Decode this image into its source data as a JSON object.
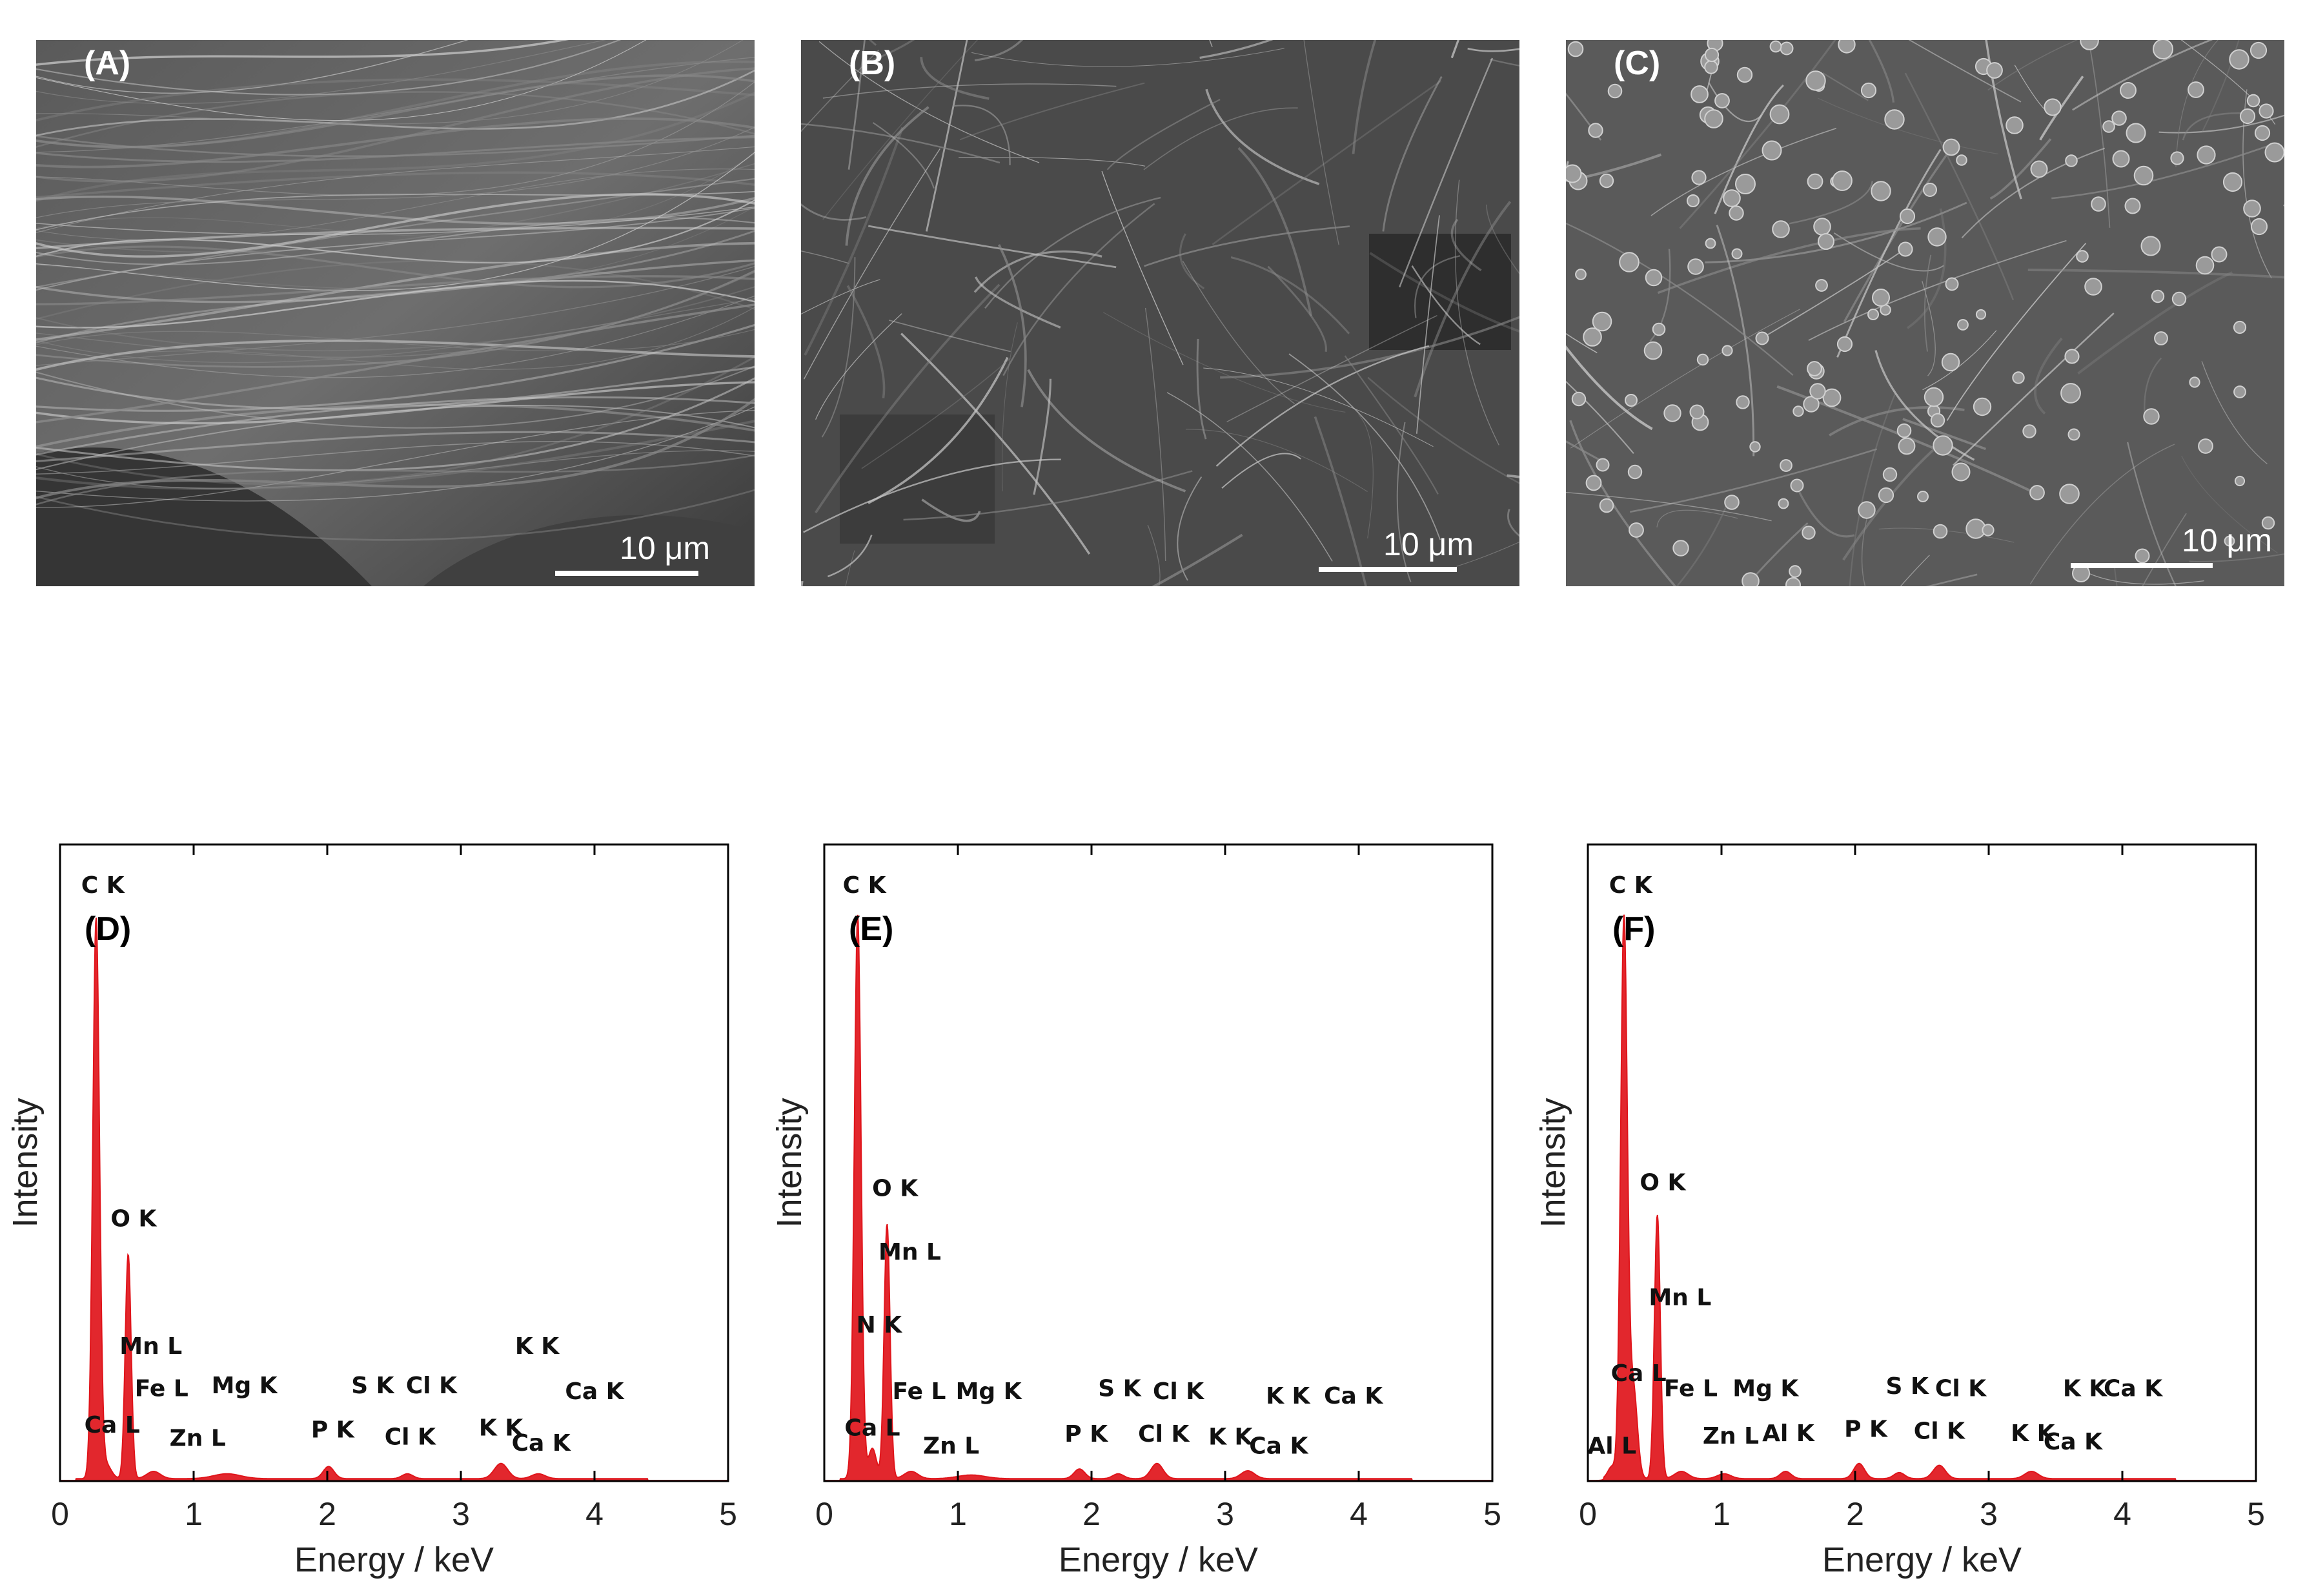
{
  "figure": {
    "sem_panels": [
      {
        "label": "(A)",
        "scale_bar": "10 μm",
        "texture": "smooth-folded-sheets"
      },
      {
        "label": "(B)",
        "scale_bar": "10 μm",
        "texture": "fibrous-network"
      },
      {
        "label": "(C)",
        "scale_bar": "10 μm",
        "texture": "textured-with-particles"
      }
    ]
  },
  "colors": {
    "spectrum": "#e0151b",
    "axis": "#000000",
    "background": "#ffffff"
  },
  "chart_data": [
    {
      "type": "area",
      "panel_label": "(D)",
      "xlabel": "Energy / keV",
      "ylabel": "Intensity",
      "xlim": [
        0,
        5
      ],
      "ylim": [
        0,
        1.05
      ],
      "x_ticks": [
        "0",
        "1",
        "2",
        "3",
        "4",
        "5"
      ],
      "grid": false,
      "peaks": [
        {
          "x": 0.27,
          "y": 0.92,
          "width": 0.025
        },
        {
          "x": 0.51,
          "y": 0.37,
          "width": 0.022
        },
        {
          "x": 0.34,
          "y": 0.025,
          "width": 0.04
        },
        {
          "x": 0.7,
          "y": 0.012,
          "width": 0.05
        },
        {
          "x": 1.25,
          "y": 0.008,
          "width": 0.1
        },
        {
          "x": 2.01,
          "y": 0.02,
          "width": 0.04
        },
        {
          "x": 2.6,
          "y": 0.008,
          "width": 0.04
        },
        {
          "x": 3.3,
          "y": 0.025,
          "width": 0.05
        },
        {
          "x": 3.58,
          "y": 0.008,
          "width": 0.05
        }
      ],
      "annotations": [
        {
          "text": "C  K",
          "x": 0.32,
          "y": 0.97
        },
        {
          "text": "O  K",
          "x": 0.55,
          "y": 0.42
        },
        {
          "text": "Mn L",
          "x": 0.68,
          "y": 0.21
        },
        {
          "text": "Fe L",
          "x": 0.76,
          "y": 0.14
        },
        {
          "text": "Mg K",
          "x": 1.38,
          "y": 0.145
        },
        {
          "text": "Ca L",
          "x": 0.39,
          "y": 0.08
        },
        {
          "text": "Zn L",
          "x": 1.03,
          "y": 0.058
        },
        {
          "text": "S  K",
          "x": 2.34,
          "y": 0.145
        },
        {
          "text": "Cl K",
          "x": 2.78,
          "y": 0.145
        },
        {
          "text": "P  K",
          "x": 2.04,
          "y": 0.072
        },
        {
          "text": "Cl K",
          "x": 2.62,
          "y": 0.06
        },
        {
          "text": "K  K",
          "x": 3.57,
          "y": 0.21
        },
        {
          "text": "K  K",
          "x": 3.3,
          "y": 0.075
        },
        {
          "text": "Ca K",
          "x": 3.6,
          "y": 0.05
        },
        {
          "text": "Ca K",
          "x": 4.0,
          "y": 0.135
        }
      ]
    },
    {
      "type": "area",
      "panel_label": "(E)",
      "xlabel": "Energy / keV",
      "ylabel": "Intensity",
      "xlim": [
        0,
        5
      ],
      "ylim": [
        0,
        1.05
      ],
      "x_ticks": [
        "0",
        "1",
        "2",
        "3",
        "4",
        "5"
      ],
      "grid": false,
      "peaks": [
        {
          "x": 0.25,
          "y": 0.93,
          "width": 0.025
        },
        {
          "x": 0.47,
          "y": 0.42,
          "width": 0.022
        },
        {
          "x": 0.36,
          "y": 0.05,
          "width": 0.03
        },
        {
          "x": 0.65,
          "y": 0.012,
          "width": 0.05
        },
        {
          "x": 1.1,
          "y": 0.006,
          "width": 0.1
        },
        {
          "x": 1.91,
          "y": 0.016,
          "width": 0.04
        },
        {
          "x": 2.2,
          "y": 0.008,
          "width": 0.04
        },
        {
          "x": 2.49,
          "y": 0.025,
          "width": 0.045
        },
        {
          "x": 3.17,
          "y": 0.013,
          "width": 0.05
        }
      ],
      "annotations": [
        {
          "text": "C  K",
          "x": 0.3,
          "y": 0.97
        },
        {
          "text": "O  K",
          "x": 0.53,
          "y": 0.47
        },
        {
          "text": "Mn L",
          "x": 0.64,
          "y": 0.365
        },
        {
          "text": "N  K",
          "x": 0.41,
          "y": 0.245
        },
        {
          "text": "Fe L",
          "x": 0.71,
          "y": 0.135
        },
        {
          "text": "Mg K",
          "x": 1.23,
          "y": 0.135
        },
        {
          "text": "Ca L",
          "x": 0.36,
          "y": 0.075
        },
        {
          "text": "Zn L",
          "x": 0.95,
          "y": 0.045
        },
        {
          "text": "S  K",
          "x": 2.21,
          "y": 0.14
        },
        {
          "text": "Cl K",
          "x": 2.65,
          "y": 0.135
        },
        {
          "text": "P  K",
          "x": 1.96,
          "y": 0.065
        },
        {
          "text": "Cl K",
          "x": 2.54,
          "y": 0.065
        },
        {
          "text": "K  K",
          "x": 3.47,
          "y": 0.128
        },
        {
          "text": "Ca K",
          "x": 3.96,
          "y": 0.128
        },
        {
          "text": "K  K",
          "x": 3.04,
          "y": 0.06
        },
        {
          "text": "Ca K",
          "x": 3.4,
          "y": 0.045
        }
      ]
    },
    {
      "type": "area",
      "panel_label": "(F)",
      "xlabel": "Energy / keV",
      "ylabel": "Intensity",
      "xlim": [
        0,
        5
      ],
      "ylim": [
        0,
        1.05
      ],
      "x_ticks": [
        "0",
        "1",
        "2",
        "3",
        "4",
        "5"
      ],
      "grid": false,
      "peaks": [
        {
          "x": 0.27,
          "y": 0.92,
          "width": 0.025
        },
        {
          "x": 0.52,
          "y": 0.435,
          "width": 0.022
        },
        {
          "x": 0.34,
          "y": 0.15,
          "width": 0.03
        },
        {
          "x": 0.18,
          "y": 0.02,
          "width": 0.03
        },
        {
          "x": 0.7,
          "y": 0.012,
          "width": 0.05
        },
        {
          "x": 1.02,
          "y": 0.008,
          "width": 0.05
        },
        {
          "x": 1.48,
          "y": 0.012,
          "width": 0.04
        },
        {
          "x": 2.03,
          "y": 0.025,
          "width": 0.04
        },
        {
          "x": 2.33,
          "y": 0.01,
          "width": 0.04
        },
        {
          "x": 2.63,
          "y": 0.022,
          "width": 0.045
        },
        {
          "x": 3.32,
          "y": 0.012,
          "width": 0.05
        }
      ],
      "annotations": [
        {
          "text": "C  K",
          "x": 0.32,
          "y": 0.97
        },
        {
          "text": "O  K",
          "x": 0.56,
          "y": 0.48
        },
        {
          "text": "Mn L",
          "x": 0.69,
          "y": 0.29
        },
        {
          "text": "Ca L",
          "x": 0.38,
          "y": 0.165
        },
        {
          "text": "Fe L",
          "x": 0.77,
          "y": 0.14
        },
        {
          "text": "Mg K",
          "x": 1.33,
          "y": 0.14
        },
        {
          "text": "Al L",
          "x": 0.18,
          "y": 0.045
        },
        {
          "text": "Zn L",
          "x": 1.07,
          "y": 0.062
        },
        {
          "text": "Al K",
          "x": 1.5,
          "y": 0.066
        },
        {
          "text": "P  K",
          "x": 2.08,
          "y": 0.073
        },
        {
          "text": "S  K",
          "x": 2.39,
          "y": 0.144
        },
        {
          "text": "Cl K",
          "x": 2.79,
          "y": 0.14
        },
        {
          "text": "Cl K",
          "x": 2.63,
          "y": 0.07
        },
        {
          "text": "K  K",
          "x": 3.72,
          "y": 0.14
        },
        {
          "text": "Ca K",
          "x": 4.08,
          "y": 0.14
        },
        {
          "text": "K  K",
          "x": 3.33,
          "y": 0.066
        },
        {
          "text": "Ca K",
          "x": 3.63,
          "y": 0.052
        }
      ]
    }
  ]
}
